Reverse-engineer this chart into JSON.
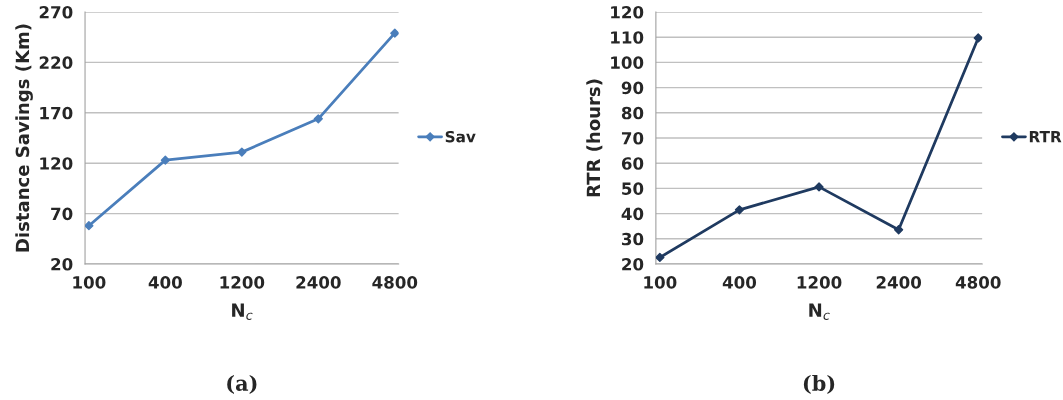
{
  "chart_data": [
    {
      "type": "line",
      "categories": [
        "100",
        "400",
        "1200",
        "2400",
        "4800"
      ],
      "xlabel": "N$_{c}$",
      "ylabel": "Distance Savings (Km)",
      "series": [
        {
          "name": "Sav",
          "color": "#4a7ebb",
          "values": [
            58,
            123,
            131,
            164,
            249
          ]
        }
      ],
      "ylim": [
        20,
        270
      ],
      "yticks": [
        20,
        70,
        120,
        170,
        220,
        270
      ],
      "grid": "y",
      "legend": "right",
      "marker": "diamond",
      "line_style": "solid",
      "annotations": [
        "(a)"
      ]
    },
    {
      "type": "line",
      "categories": [
        "100",
        "400",
        "1200",
        "2400",
        "4800"
      ],
      "xlabel": "N$_{c}$",
      "ylabel": "RTR (hours)",
      "series": [
        {
          "name": "RTR",
          "color": "#1f3a60",
          "values": [
            22.6,
            41.5,
            50.6,
            33.6,
            109.7
          ]
        }
      ],
      "ylim": [
        20,
        120
      ],
      "yticks": [
        20,
        30,
        40,
        50,
        60,
        70,
        80,
        90,
        100,
        110,
        120
      ],
      "grid": "y",
      "legend": "right",
      "marker": "diamond",
      "line_style": "solid",
      "annotations": [
        "(b)"
      ]
    }
  ]
}
